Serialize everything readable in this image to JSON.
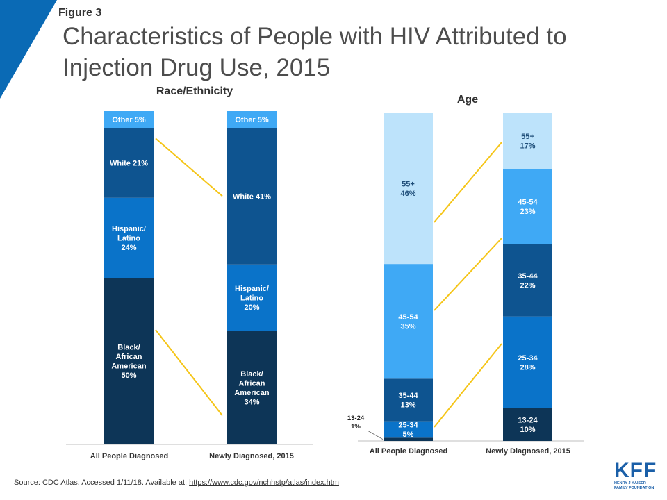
{
  "figure_label": "Figure 3",
  "title": "Characteristics of People with HIV Attributed to Injection Drug Use, 2015",
  "source": {
    "text": "Source: CDC Atlas. Accessed 1/11/18. Available at: ",
    "link": "https://www.cdc.gov/nchhstp/atlas/index.htm"
  },
  "logo": {
    "letters": "KFF",
    "subtitle": "HENRY J KAISER\nFAMILY FOUNDATION"
  },
  "colors": {
    "corner": "#0a6ab5",
    "connector": "#f5c518",
    "axis": "#bfbfbf",
    "black": "#0d3557",
    "hispanic": "#0a73c9",
    "white": "#0e5490",
    "other": "#3fa9f5",
    "age_13_24": "#0d3557",
    "age_25_34": "#0a73c9",
    "age_35_44": "#0e5490",
    "age_45_54": "#3fa9f5",
    "age_55": "#bde3fb"
  },
  "chart_data": [
    {
      "type": "bar",
      "stacked": true,
      "title": "Race/Ethnicity",
      "categories": [
        "All People Diagnosed",
        "Newly Diagnosed, 2015"
      ],
      "series": [
        {
          "key": "black",
          "labels": [
            "Black/\nAfrican\nAmerican\n50%",
            "Black/\nAfrican\nAmerican\n34%"
          ],
          "values": [
            50,
            34
          ]
        },
        {
          "key": "hispanic",
          "labels": [
            "Hispanic/\nLatino\n24%",
            "Hispanic/\nLatino\n20%"
          ],
          "values": [
            24,
            20
          ]
        },
        {
          "key": "white",
          "labels": [
            "White 21%",
            "White 41%"
          ],
          "values": [
            21,
            41
          ]
        },
        {
          "key": "other",
          "labels": [
            "Other  5%",
            "Other 5%"
          ],
          "values": [
            5,
            5
          ]
        }
      ],
      "ylim": [
        0,
        100
      ]
    },
    {
      "type": "bar",
      "stacked": true,
      "title": "Age",
      "categories": [
        "All People Diagnosed",
        "Newly Diagnosed, 2015"
      ],
      "series": [
        {
          "key": "age_13_24",
          "labels": [
            "",
            "13-24\n10%"
          ],
          "outside_label": "13-24\n1%",
          "values": [
            1,
            10
          ]
        },
        {
          "key": "age_25_34",
          "labels": [
            "25-34\n5%",
            "25-34\n28%"
          ],
          "values": [
            5,
            28
          ]
        },
        {
          "key": "age_35_44",
          "labels": [
            "35-44\n13%",
            "35-44\n22%"
          ],
          "values": [
            13,
            22
          ]
        },
        {
          "key": "age_45_54",
          "labels": [
            "45-54\n35%",
            "45-54\n23%"
          ],
          "values": [
            35,
            23
          ]
        },
        {
          "key": "age_55",
          "labels": [
            "55+\n46%",
            "55+\n17%"
          ],
          "values": [
            46,
            17
          ]
        }
      ],
      "ylim": [
        0,
        100
      ]
    }
  ]
}
